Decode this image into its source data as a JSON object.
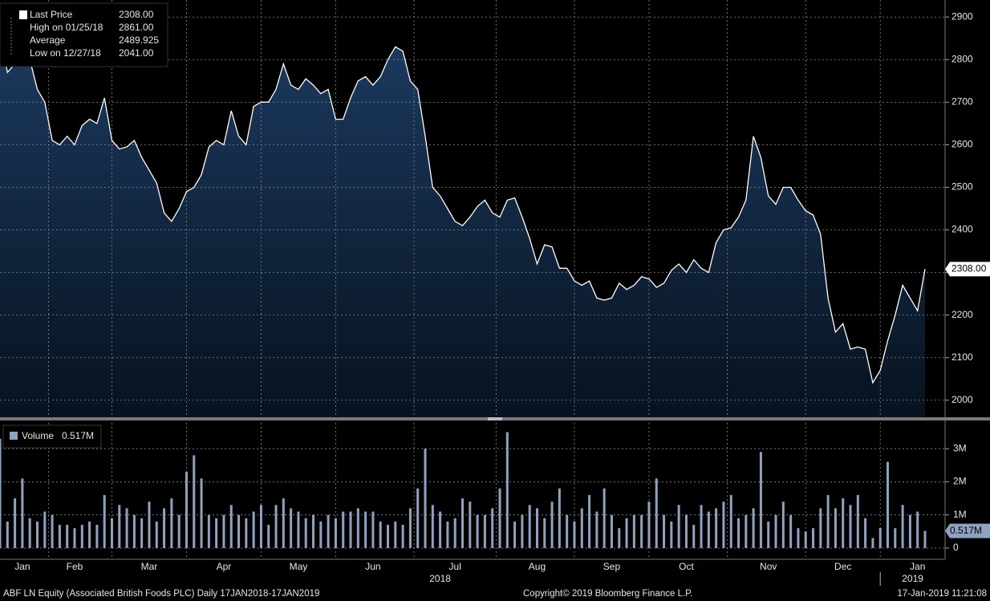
{
  "chart_data": [
    {
      "type": "area",
      "series_name": "Last Price",
      "stats": [
        {
          "label": "Last Price",
          "value": "2308.00"
        },
        {
          "label": "High on 01/25/18",
          "value": "2861.00"
        },
        {
          "label": "Average",
          "value": "2489.925"
        },
        {
          "label": "Low on 12/27/18",
          "value": "2041.00"
        }
      ],
      "values": [
        2864,
        2770,
        2790,
        2861,
        2800,
        2730,
        2700,
        2610,
        2600,
        2620,
        2600,
        2645,
        2660,
        2650,
        2710,
        2610,
        2590,
        2595,
        2610,
        2570,
        2540,
        2510,
        2440,
        2420,
        2450,
        2490,
        2500,
        2530,
        2595,
        2610,
        2600,
        2680,
        2620,
        2600,
        2690,
        2700,
        2700,
        2730,
        2790,
        2740,
        2730,
        2755,
        2740,
        2720,
        2730,
        2660,
        2660,
        2710,
        2750,
        2760,
        2740,
        2760,
        2800,
        2830,
        2820,
        2750,
        2730,
        2620,
        2500,
        2480,
        2450,
        2420,
        2410,
        2430,
        2455,
        2470,
        2440,
        2430,
        2470,
        2475,
        2430,
        2380,
        2320,
        2365,
        2360,
        2310,
        2310,
        2280,
        2270,
        2280,
        2240,
        2235,
        2240,
        2275,
        2260,
        2270,
        2290,
        2285,
        2265,
        2275,
        2305,
        2320,
        2300,
        2330,
        2310,
        2300,
        2370,
        2400,
        2405,
        2430,
        2470,
        2620,
        2570,
        2480,
        2460,
        2500,
        2500,
        2470,
        2445,
        2435,
        2390,
        2240,
        2160,
        2180,
        2120,
        2125,
        2120,
        2041,
        2070,
        2140,
        2200,
        2270,
        2240,
        2210,
        2308
      ],
      "value_labels": [
        null,
        null,
        null,
        null,
        null,
        null,
        null,
        null,
        null,
        null,
        null,
        null,
        null,
        null,
        null,
        null,
        null,
        null,
        null,
        null,
        null,
        null,
        null,
        null,
        null,
        null,
        null,
        null,
        null,
        null,
        null,
        null,
        null,
        null,
        null,
        null,
        null,
        null,
        null,
        null,
        null,
        null,
        null,
        null,
        null,
        null,
        null,
        null,
        null,
        null,
        null,
        null,
        null,
        null,
        null,
        null,
        null,
        null,
        null,
        null,
        null,
        null,
        null,
        null,
        null,
        null,
        null,
        null,
        null,
        null,
        null,
        null,
        null,
        null,
        null,
        null,
        null,
        null,
        null,
        null,
        null,
        null,
        null,
        null,
        null,
        null,
        null,
        null,
        null,
        null,
        null,
        null,
        null,
        null,
        null,
        null,
        null,
        null,
        null,
        null,
        null,
        null,
        null,
        null,
        null,
        null,
        null,
        null,
        null,
        null,
        null,
        null,
        null,
        null,
        null,
        null,
        null,
        null,
        null,
        null,
        null,
        null,
        null,
        null,
        "2308.00"
      ],
      "ylim": [
        1960,
        2940
      ],
      "yticks": [
        2000,
        2100,
        2200,
        2300,
        2400,
        2500,
        2600,
        2700,
        2800,
        2900
      ],
      "grid": true,
      "line_color": "#ffffff",
      "fill_color": "#1c3a60"
    },
    {
      "type": "bar",
      "series_name": "Volume",
      "categories": [
        null,
        null,
        null,
        "Jan",
        null,
        null,
        null,
        null,
        null,
        null,
        "Feb",
        null,
        null,
        null,
        null,
        null,
        null,
        null,
        null,
        null,
        "Mar",
        null,
        null,
        null,
        null,
        null,
        null,
        null,
        null,
        null,
        "Apr",
        null,
        null,
        null,
        null,
        null,
        null,
        null,
        null,
        null,
        "May",
        null,
        null,
        null,
        null,
        null,
        null,
        null,
        null,
        null,
        "Jun",
        null,
        null,
        null,
        null,
        null,
        null,
        null,
        null,
        null,
        null,
        "Jul",
        null,
        null,
        null,
        null,
        null,
        null,
        null,
        null,
        null,
        null,
        "Aug",
        null,
        null,
        null,
        null,
        null,
        null,
        null,
        null,
        null,
        "Sep",
        null,
        null,
        null,
        null,
        null,
        null,
        null,
        null,
        null,
        "Oct",
        null,
        null,
        null,
        null,
        null,
        null,
        null,
        null,
        null,
        null,
        "Nov",
        null,
        null,
        null,
        null,
        null,
        null,
        null,
        null,
        null,
        "Dec",
        null,
        null,
        null,
        null,
        null,
        null,
        null,
        null,
        null,
        "Jan",
        null
      ],
      "years": [
        "2018",
        "2019"
      ],
      "values": [
        3.3,
        0.8,
        1.5,
        2.1,
        0.9,
        0.8,
        1.1,
        1.0,
        0.7,
        0.7,
        0.6,
        0.7,
        0.8,
        0.7,
        1.6,
        0.9,
        1.3,
        1.2,
        1.0,
        0.9,
        1.4,
        0.8,
        1.2,
        1.5,
        1.0,
        2.3,
        2.8,
        2.1,
        1.0,
        0.9,
        1.0,
        1.3,
        1.0,
        0.9,
        1.1,
        1.3,
        0.7,
        1.3,
        1.5,
        1.2,
        1.1,
        0.9,
        1.0,
        0.8,
        1.0,
        0.9,
        1.1,
        1.1,
        1.2,
        1.1,
        1.1,
        0.8,
        0.7,
        0.8,
        0.7,
        1.2,
        1.8,
        3.0,
        1.3,
        1.1,
        0.8,
        0.9,
        1.5,
        1.4,
        1.0,
        1.0,
        1.2,
        1.8,
        3.5,
        0.8,
        1.0,
        1.3,
        1.2,
        0.9,
        1.4,
        1.8,
        1.0,
        0.8,
        1.2,
        1.6,
        1.1,
        1.8,
        1.0,
        0.6,
        0.9,
        1.0,
        1.0,
        1.4,
        2.1,
        1.0,
        0.8,
        1.3,
        1.0,
        0.7,
        1.3,
        1.1,
        1.2,
        1.4,
        1.6,
        0.9,
        1.0,
        1.2,
        2.9,
        0.8,
        1.0,
        1.4,
        1.0,
        0.6,
        0.5,
        0.6,
        1.2,
        1.6,
        1.2,
        1.5,
        1.3,
        1.6,
        0.9,
        0.3,
        0.6,
        2.6,
        0.6,
        1.3,
        1.0,
        1.1,
        0.517
      ],
      "value_labels": [
        null,
        null,
        null,
        null,
        null,
        null,
        null,
        null,
        null,
        null,
        null,
        null,
        null,
        null,
        null,
        null,
        null,
        null,
        null,
        null,
        null,
        null,
        null,
        null,
        null,
        null,
        null,
        null,
        null,
        null,
        null,
        null,
        null,
        null,
        null,
        null,
        null,
        null,
        null,
        null,
        null,
        null,
        null,
        null,
        null,
        null,
        null,
        null,
        null,
        null,
        null,
        null,
        null,
        null,
        null,
        null,
        null,
        null,
        null,
        null,
        null,
        null,
        null,
        null,
        null,
        null,
        null,
        null,
        null,
        null,
        null,
        null,
        null,
        null,
        null,
        null,
        null,
        null,
        null,
        null,
        null,
        null,
        null,
        null,
        null,
        null,
        null,
        null,
        null,
        null,
        null,
        null,
        null,
        null,
        null,
        null,
        null,
        null,
        null,
        null,
        null,
        null,
        null,
        null,
        null,
        null,
        null,
        null,
        null,
        null,
        null,
        null,
        null,
        null,
        null,
        null,
        null,
        null,
        null,
        null,
        null,
        null,
        null,
        null,
        "0.517M"
      ],
      "ylim": [
        -0.34,
        3.78
      ],
      "yticks": [
        0,
        {
          "value": 1,
          "label": "1M"
        },
        {
          "value": 2,
          "label": "2M"
        },
        {
          "value": 3,
          "label": "3M"
        }
      ],
      "grid": true,
      "color": "#8ea2c2"
    }
  ],
  "footer": {
    "left": "ABF LN Equity (Associated British Foods PLC)  Daily 17JAN2018-17JAN2019",
    "center": "Copyright© 2019 Bloomberg Finance L.P.",
    "right": "17-Jan-2019 11:21:08"
  }
}
